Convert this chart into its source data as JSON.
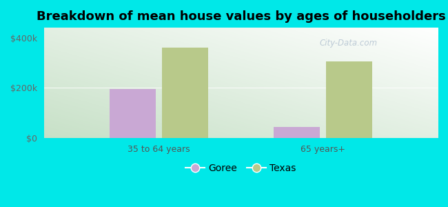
{
  "title": "Breakdown of mean house values by ages of householders",
  "categories": [
    "35 to 64 years",
    "65 years+"
  ],
  "goree_values": [
    195000,
    45000
  ],
  "texas_values": [
    360000,
    305000
  ],
  "goree_color": "#c9a8d4",
  "texas_color": "#b8c98a",
  "background_color": "#00e8e8",
  "ylim": [
    0,
    440000
  ],
  "yticks": [
    0,
    200000,
    400000
  ],
  "ytick_labels": [
    "$0",
    "$200k",
    "$400k"
  ],
  "legend_labels": [
    "Goree",
    "Texas"
  ],
  "bar_width": 0.28,
  "title_fontsize": 13,
  "tick_fontsize": 9,
  "legend_fontsize": 10,
  "watermark": "City-Data.com"
}
